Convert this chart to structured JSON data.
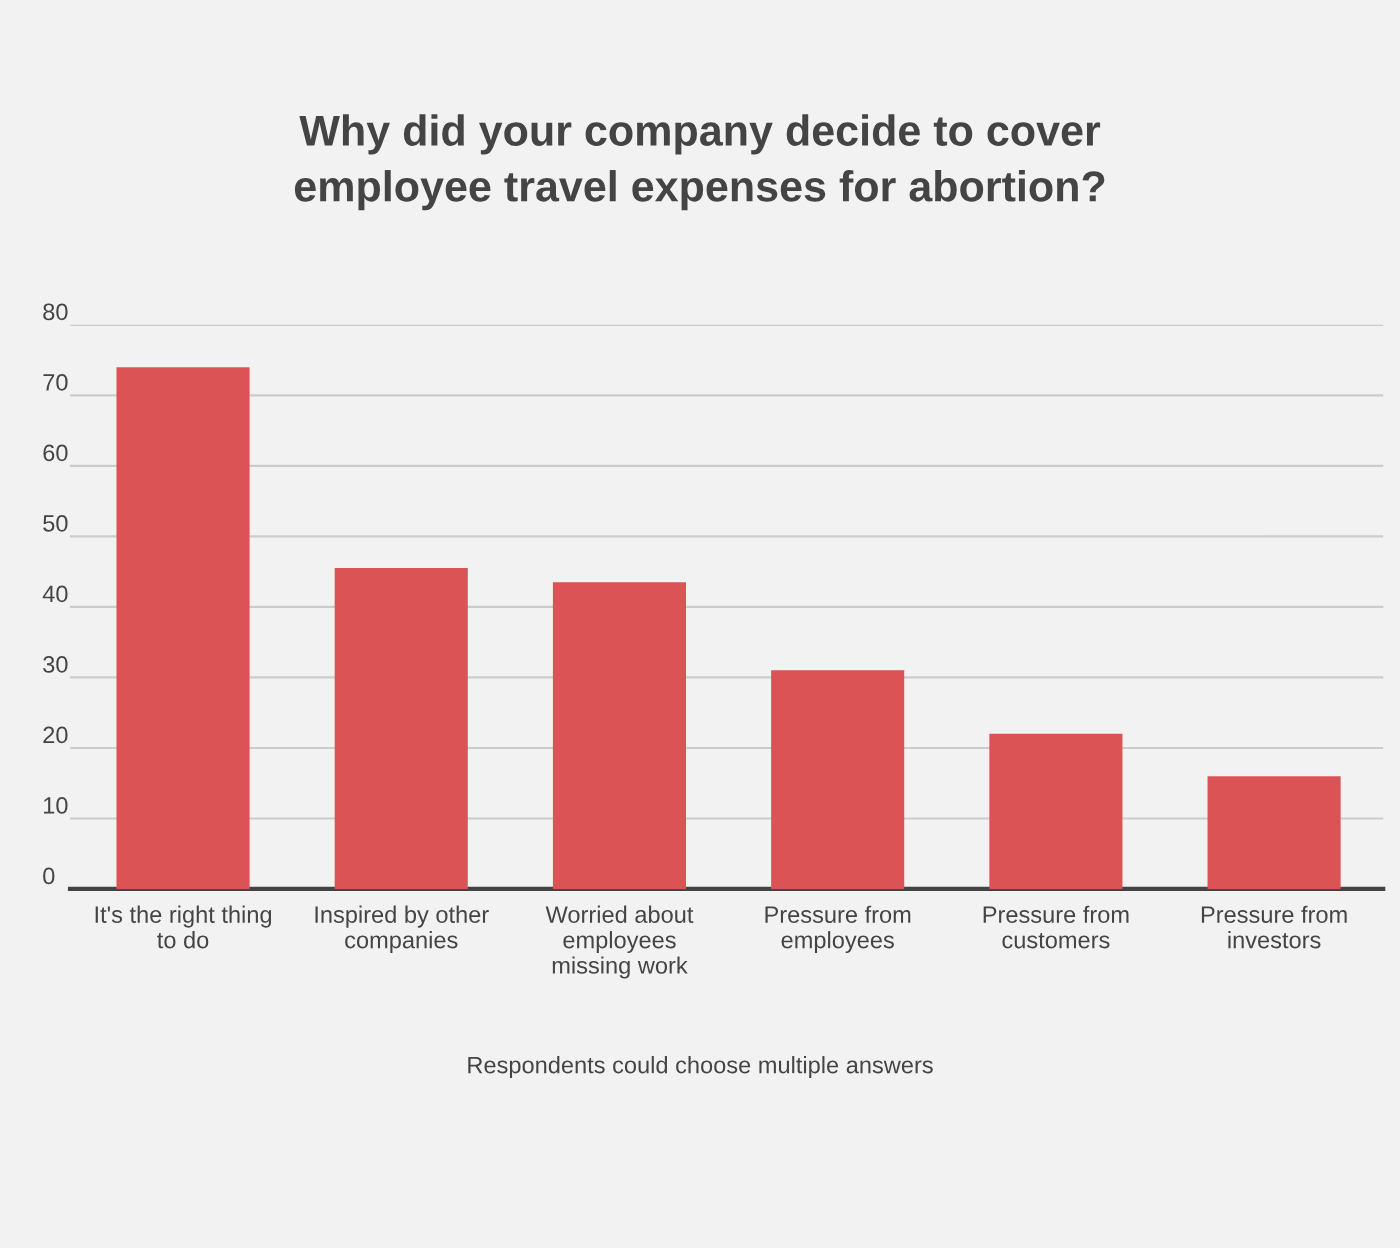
{
  "chart_data": {
    "type": "bar",
    "title": "Why did your company decide to cover\nemployee travel expenses for abortion?",
    "categories": [
      "It's the right thing\nto do",
      "Inspired by other\ncompanies",
      "Worried about\nemployees\nmissing work",
      "Pressure from\nemployees",
      "Pressure from\ncustomers",
      "Pressure from\ninvestors"
    ],
    "values": [
      74,
      45.5,
      43.5,
      31,
      22,
      16
    ],
    "color": "#dc5356",
    "ylim": [
      0,
      80
    ],
    "yticks": [
      0,
      10,
      20,
      30,
      40,
      50,
      60,
      70,
      80
    ],
    "grid": "y",
    "annotations": [
      "Respondents could choose multiple answers"
    ]
  }
}
